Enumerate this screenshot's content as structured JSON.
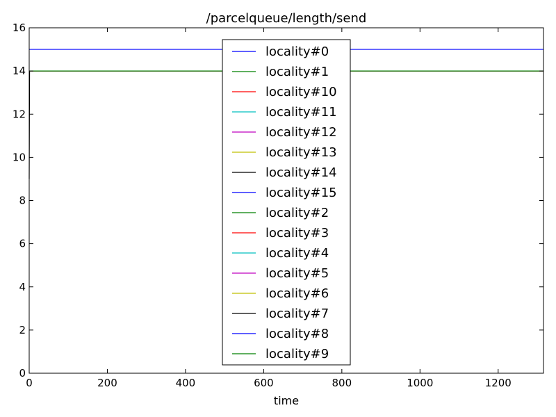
{
  "chart_data": {
    "type": "line",
    "title": "/parcelqueue/length/send",
    "xlabel": "time",
    "ylabel": "",
    "xlim": [
      0,
      1316
    ],
    "ylim": [
      0,
      16
    ],
    "x_ticks": [
      0,
      200,
      400,
      600,
      800,
      1000,
      1200
    ],
    "y_ticks": [
      0,
      2,
      4,
      6,
      8,
      10,
      12,
      14,
      16
    ],
    "grid": false,
    "legend_position": "center",
    "series": [
      {
        "name": "locality#0",
        "color": "#0000ff",
        "x": [
          0,
          1316
        ],
        "y": [
          15,
          15
        ]
      },
      {
        "name": "locality#1",
        "color": "#008000",
        "x": [
          0,
          1316
        ],
        "y": [
          14,
          14
        ]
      },
      {
        "name": "locality#10",
        "color": "#ff0000",
        "x": [
          0,
          1316
        ],
        "y": [
          14,
          14
        ]
      },
      {
        "name": "locality#11",
        "color": "#00bfbf",
        "x": [
          0,
          1316
        ],
        "y": [
          14,
          14
        ]
      },
      {
        "name": "locality#12",
        "color": "#bf00bf",
        "x": [
          0,
          1316
        ],
        "y": [
          14,
          14
        ]
      },
      {
        "name": "locality#13",
        "color": "#bfbf00",
        "x": [
          0,
          1316
        ],
        "y": [
          14,
          14
        ]
      },
      {
        "name": "locality#14",
        "color": "#000000",
        "x": [
          0,
          1,
          1316
        ],
        "y": [
          9,
          14,
          14
        ]
      },
      {
        "name": "locality#15",
        "color": "#0000ff",
        "x": [
          0,
          1316
        ],
        "y": [
          14,
          14
        ]
      },
      {
        "name": "locality#2",
        "color": "#008000",
        "x": [
          0,
          1316
        ],
        "y": [
          14,
          14
        ]
      },
      {
        "name": "locality#3",
        "color": "#ff0000",
        "x": [
          0,
          1316
        ],
        "y": [
          14,
          14
        ]
      },
      {
        "name": "locality#4",
        "color": "#00bfbf",
        "x": [
          0,
          1316
        ],
        "y": [
          14,
          14
        ]
      },
      {
        "name": "locality#5",
        "color": "#bf00bf",
        "x": [
          0,
          1316
        ],
        "y": [
          14,
          14
        ]
      },
      {
        "name": "locality#6",
        "color": "#bfbf00",
        "x": [
          0,
          1316
        ],
        "y": [
          14,
          14
        ]
      },
      {
        "name": "locality#7",
        "color": "#000000",
        "x": [
          0,
          1316
        ],
        "y": [
          14,
          14
        ]
      },
      {
        "name": "locality#8",
        "color": "#0000ff",
        "x": [
          0,
          1316
        ],
        "y": [
          14,
          14
        ]
      },
      {
        "name": "locality#9",
        "color": "#008000",
        "x": [
          0,
          1316
        ],
        "y": [
          14,
          14
        ]
      }
    ]
  }
}
